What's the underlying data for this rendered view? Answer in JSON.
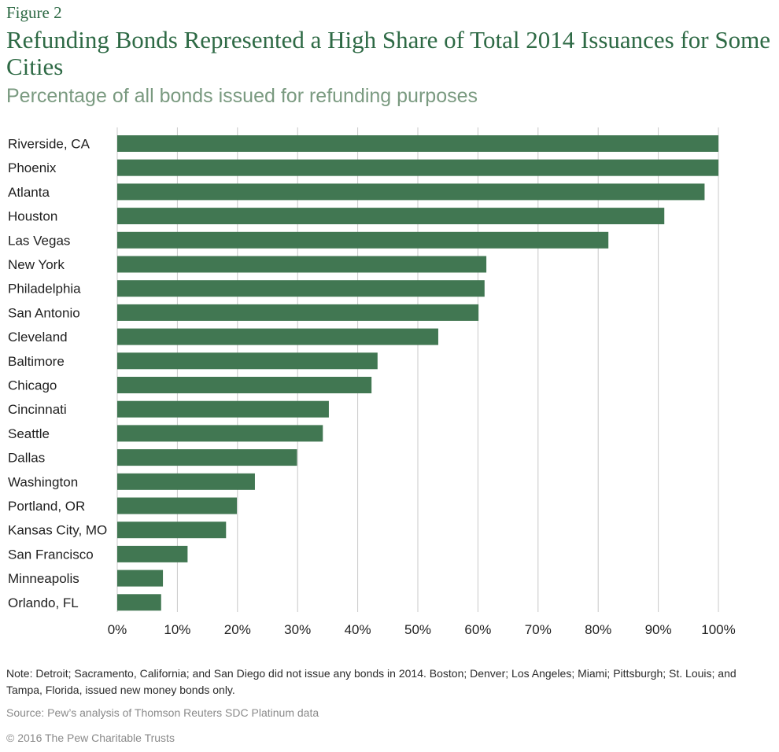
{
  "figure_label": "Figure 2",
  "title": "Refunding Bonds Represented a High Share of Total 2014 Issuances for Some Cities",
  "subtitle": "Percentage of all bonds issued for refunding purposes",
  "note": "Note: Detroit; Sacramento, California; and San Diego did not issue any bonds in 2014. Boston; Denver; Los Angeles; Miami; Pittsburgh; St. Louis; and Tampa, Florida, issued new money bonds only.",
  "source": "Source: Pew’s analysis of Thomson Reuters SDC Platinum data",
  "copyright": "© 2016 The Pew Charitable Trusts",
  "colors": {
    "bar": "#417752",
    "grid": "#c8c8c8",
    "title": "#2e6a45"
  },
  "chart_data": {
    "type": "bar",
    "orientation": "horizontal",
    "categories": [
      "Riverside, CA",
      "Phoenix",
      "Atlanta",
      "Houston",
      "Las Vegas",
      "New York",
      "Philadelphia",
      "San Antonio",
      "Cleveland",
      "Baltimore",
      "Chicago",
      "Cincinnati",
      "Seattle",
      "Dallas",
      "Washington",
      "Portland, OR",
      "Kansas City, MO",
      "San Francisco",
      "Minneapolis",
      "Orlando, FL"
    ],
    "values": [
      100,
      100,
      97.7,
      91,
      81.7,
      61.4,
      61.1,
      60.1,
      53.4,
      43.3,
      42.3,
      35.2,
      34.2,
      29.9,
      22.9,
      19.9,
      18.1,
      11.7,
      7.6,
      7.3
    ],
    "xlim": [
      0,
      100
    ],
    "ticks": [
      0,
      10,
      20,
      30,
      40,
      50,
      60,
      70,
      80,
      90,
      100
    ],
    "tick_labels": [
      "0%",
      "10%",
      "20%",
      "30%",
      "40%",
      "50%",
      "60%",
      "70%",
      "80%",
      "90%",
      "100%"
    ],
    "grid": true
  }
}
